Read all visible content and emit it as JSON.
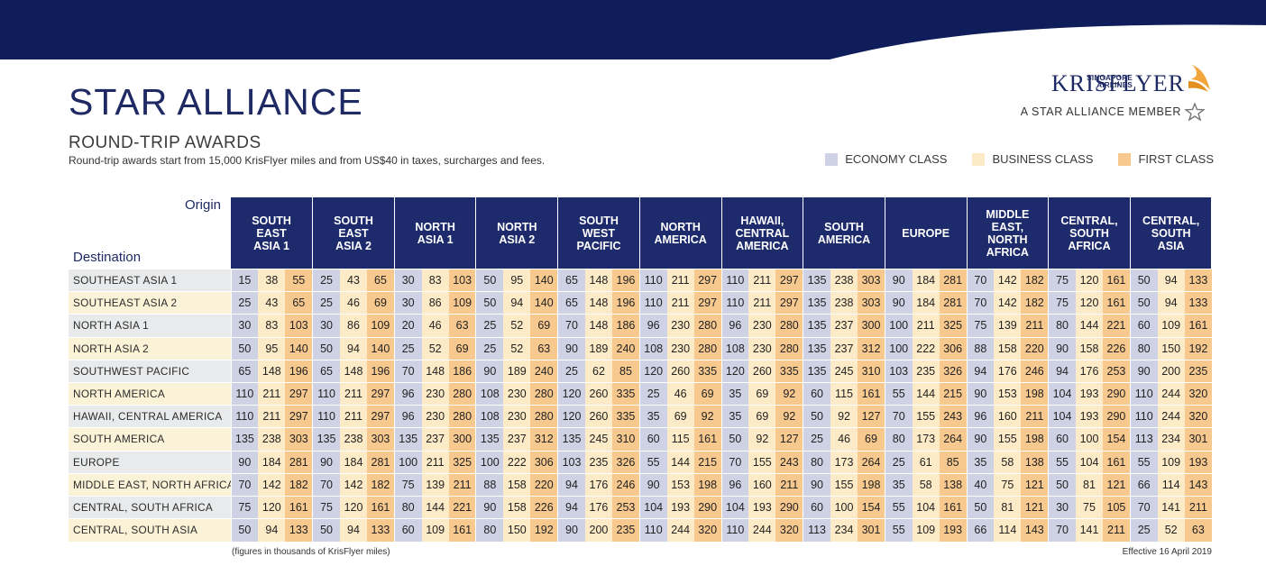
{
  "header": {
    "brand_small_line1": "SINGAPORE",
    "brand_small_line2": "AIRLINES",
    "brand_name": "KRISFLYER",
    "member_text": "A STAR ALLIANCE MEMBER",
    "title": "STAR ALLIANCE",
    "subtitle": "ROUND-TRIP AWARDS",
    "description": "Round-trip awards start from 15,000 KrisFlyer miles and from US$40 in taxes, surcharges and fees."
  },
  "colors": {
    "navy": "#1d2a6c",
    "economy": "#cfd2e5",
    "business": "#fdebc7",
    "first": "#f8c98f"
  },
  "legend": [
    {
      "label": "ECONOMY CLASS",
      "color": "#cfd2e5"
    },
    {
      "label": "BUSINESS CLASS",
      "color": "#fdebc7"
    },
    {
      "label": "FIRST CLASS",
      "color": "#f8c98f"
    }
  ],
  "table": {
    "origin_label": "Origin",
    "destination_label": "Destination",
    "columns": [
      "SOUTH\nEAST\nASIA 1",
      "SOUTH\nEAST\nASIA 2",
      "NORTH\nASIA 1",
      "NORTH\nASIA 2",
      "SOUTH\nWEST\nPACIFIC",
      "NORTH\nAMERICA",
      "HAWAII,\nCENTRAL\nAMERICA",
      "SOUTH\nAMERICA",
      "EUROPE",
      "MIDDLE\nEAST,\nNORTH\nAFRICA",
      "CENTRAL,\nSOUTH\nAFRICA",
      "CENTRAL,\nSOUTH\nASIA"
    ],
    "rows": [
      {
        "destination": "SOUTHEAST ASIA 1",
        "values": [
          15,
          38,
          55,
          25,
          43,
          65,
          30,
          83,
          103,
          50,
          95,
          140,
          65,
          148,
          196,
          110,
          211,
          297,
          110,
          211,
          297,
          135,
          238,
          303,
          90,
          184,
          281,
          70,
          142,
          182,
          75,
          120,
          161,
          50,
          94,
          133
        ]
      },
      {
        "destination": "SOUTHEAST ASIA 2",
        "values": [
          25,
          43,
          65,
          25,
          46,
          69,
          30,
          86,
          109,
          50,
          94,
          140,
          65,
          148,
          196,
          110,
          211,
          297,
          110,
          211,
          297,
          135,
          238,
          303,
          90,
          184,
          281,
          70,
          142,
          182,
          75,
          120,
          161,
          50,
          94,
          133
        ]
      },
      {
        "destination": "NORTH ASIA 1",
        "values": [
          30,
          83,
          103,
          30,
          86,
          109,
          20,
          46,
          63,
          25,
          52,
          69,
          70,
          148,
          186,
          96,
          230,
          280,
          96,
          230,
          280,
          135,
          237,
          300,
          100,
          211,
          325,
          75,
          139,
          211,
          80,
          144,
          221,
          60,
          109,
          161
        ]
      },
      {
        "destination": "NORTH ASIA 2",
        "values": [
          50,
          95,
          140,
          50,
          94,
          140,
          25,
          52,
          69,
          25,
          52,
          63,
          90,
          189,
          240,
          108,
          230,
          280,
          108,
          230,
          280,
          135,
          237,
          312,
          100,
          222,
          306,
          88,
          158,
          220,
          90,
          158,
          226,
          80,
          150,
          192
        ]
      },
      {
        "destination": "SOUTHWEST PACIFIC",
        "values": [
          65,
          148,
          196,
          65,
          148,
          196,
          70,
          148,
          186,
          90,
          189,
          240,
          25,
          62,
          85,
          120,
          260,
          335,
          120,
          260,
          335,
          135,
          245,
          310,
          103,
          235,
          326,
          94,
          176,
          246,
          94,
          176,
          253,
          90,
          200,
          235
        ]
      },
      {
        "destination": "NORTH AMERICA",
        "values": [
          110,
          211,
          297,
          110,
          211,
          297,
          96,
          230,
          280,
          108,
          230,
          280,
          120,
          260,
          335,
          25,
          46,
          69,
          35,
          69,
          92,
          60,
          115,
          161,
          55,
          144,
          215,
          90,
          153,
          198,
          104,
          193,
          290,
          110,
          244,
          320
        ]
      },
      {
        "destination": "HAWAII, CENTRAL AMERICA",
        "values": [
          110,
          211,
          297,
          110,
          211,
          297,
          96,
          230,
          280,
          108,
          230,
          280,
          120,
          260,
          335,
          35,
          69,
          92,
          35,
          69,
          92,
          50,
          92,
          127,
          70,
          155,
          243,
          96,
          160,
          211,
          104,
          193,
          290,
          110,
          244,
          320
        ]
      },
      {
        "destination": "SOUTH AMERICA",
        "values": [
          135,
          238,
          303,
          135,
          238,
          303,
          135,
          237,
          300,
          135,
          237,
          312,
          135,
          245,
          310,
          60,
          115,
          161,
          50,
          92,
          127,
          25,
          46,
          69,
          80,
          173,
          264,
          90,
          155,
          198,
          60,
          100,
          154,
          113,
          234,
          301
        ]
      },
      {
        "destination": "EUROPE",
        "values": [
          90,
          184,
          281,
          90,
          184,
          281,
          100,
          211,
          325,
          100,
          222,
          306,
          103,
          235,
          326,
          55,
          144,
          215,
          70,
          155,
          243,
          80,
          173,
          264,
          25,
          61,
          85,
          35,
          58,
          138,
          55,
          104,
          161,
          55,
          109,
          193
        ]
      },
      {
        "destination": "MIDDLE EAST, NORTH AFRICA",
        "values": [
          70,
          142,
          182,
          70,
          142,
          182,
          75,
          139,
          211,
          88,
          158,
          220,
          94,
          176,
          246,
          90,
          153,
          198,
          96,
          160,
          211,
          90,
          155,
          198,
          35,
          58,
          138,
          40,
          75,
          121,
          50,
          81,
          121,
          66,
          114,
          143
        ]
      },
      {
        "destination": "CENTRAL, SOUTH AFRICA",
        "values": [
          75,
          120,
          161,
          75,
          120,
          161,
          80,
          144,
          221,
          90,
          158,
          226,
          94,
          176,
          253,
          104,
          193,
          290,
          104,
          193,
          290,
          60,
          100,
          154,
          55,
          104,
          161,
          50,
          81,
          121,
          30,
          75,
          105,
          70,
          141,
          211
        ]
      },
      {
        "destination": "CENTRAL, SOUTH ASIA",
        "values": [
          50,
          94,
          133,
          50,
          94,
          133,
          60,
          109,
          161,
          80,
          150,
          192,
          90,
          200,
          235,
          110,
          244,
          320,
          110,
          244,
          320,
          113,
          234,
          301,
          55,
          109,
          193,
          66,
          114,
          143,
          70,
          141,
          211,
          25,
          52,
          63
        ]
      }
    ]
  },
  "footer": {
    "footnote": "(figures in thousands of KrisFlyer miles)",
    "effective": "Effective 16 April 2019"
  }
}
